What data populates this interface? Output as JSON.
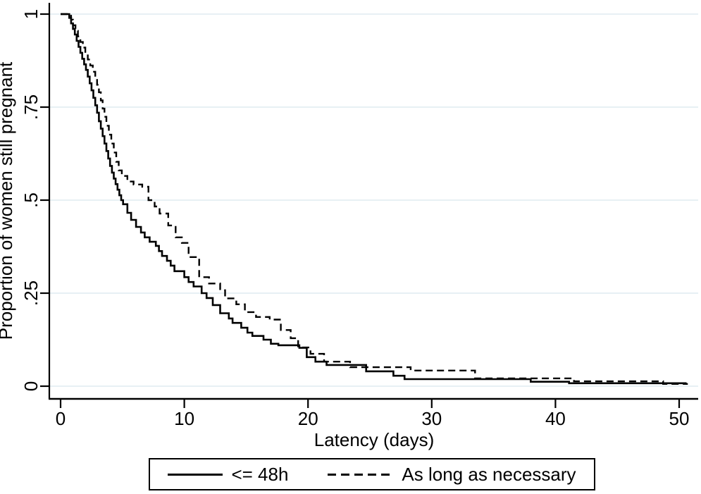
{
  "figure": {
    "background_color": "#ffffff",
    "axis_color": "#000000",
    "text_color": "#000000",
    "gridline_color": "#e7f0f4"
  },
  "chart_data": {
    "type": "line",
    "subtype": "kaplan-meier-step-survival",
    "title": "",
    "xlabel": "Latency (days)",
    "ylabel": "Proportion of women still pregnant",
    "xlim": [
      0,
      51.5
    ],
    "ylim": [
      0,
      1
    ],
    "x_ticks": [
      0,
      10,
      20,
      30,
      40,
      50
    ],
    "x_tick_labels": [
      "0",
      "10",
      "20",
      "30",
      "40",
      "50"
    ],
    "y_ticks": [
      0,
      0.25,
      0.5,
      0.75,
      1
    ],
    "y_tick_labels": [
      "0",
      ".25",
      ".5",
      ".75",
      "1"
    ],
    "grid": "horizontal-only",
    "gridline_color": "#e7f0f4",
    "line_color": "#000000",
    "legend_position": "bottom-outside-boxed",
    "series": [
      {
        "name": "<= 48h",
        "dash": "solid",
        "points": [
          [
            0,
            1.0
          ],
          [
            0.7,
            0.99
          ],
          [
            0.85,
            0.975
          ],
          [
            1.0,
            0.96
          ],
          [
            1.15,
            0.945
          ],
          [
            1.3,
            0.928
          ],
          [
            1.45,
            0.912
          ],
          [
            1.6,
            0.896
          ],
          [
            1.75,
            0.88
          ],
          [
            1.9,
            0.865
          ],
          [
            2.05,
            0.85
          ],
          [
            2.2,
            0.832
          ],
          [
            2.35,
            0.814
          ],
          [
            2.5,
            0.795
          ],
          [
            2.65,
            0.775
          ],
          [
            2.8,
            0.755
          ],
          [
            2.95,
            0.735
          ],
          [
            3.1,
            0.712
          ],
          [
            3.25,
            0.692
          ],
          [
            3.4,
            0.672
          ],
          [
            3.55,
            0.652
          ],
          [
            3.7,
            0.632
          ],
          [
            3.85,
            0.612
          ],
          [
            4.0,
            0.592
          ],
          [
            4.15,
            0.574
          ],
          [
            4.3,
            0.558
          ],
          [
            4.45,
            0.543
          ],
          [
            4.6,
            0.528
          ],
          [
            4.75,
            0.513
          ],
          [
            4.9,
            0.5
          ],
          [
            5.05,
            0.489
          ],
          [
            5.4,
            0.466
          ],
          [
            5.7,
            0.447
          ],
          [
            6.1,
            0.428
          ],
          [
            6.5,
            0.413
          ],
          [
            6.8,
            0.4
          ],
          [
            7.2,
            0.388
          ],
          [
            7.7,
            0.377
          ],
          [
            7.95,
            0.363
          ],
          [
            8.2,
            0.35
          ],
          [
            8.6,
            0.337
          ],
          [
            8.9,
            0.324
          ],
          [
            9.2,
            0.309
          ],
          [
            10.0,
            0.293
          ],
          [
            10.35,
            0.28
          ],
          [
            10.75,
            0.268
          ],
          [
            11.4,
            0.25
          ],
          [
            11.8,
            0.237
          ],
          [
            12.3,
            0.218
          ],
          [
            12.9,
            0.196
          ],
          [
            13.6,
            0.182
          ],
          [
            13.9,
            0.17
          ],
          [
            14.6,
            0.157
          ],
          [
            15.1,
            0.144
          ],
          [
            15.5,
            0.135
          ],
          [
            16.4,
            0.125
          ],
          [
            17.0,
            0.114
          ],
          [
            17.6,
            0.11
          ],
          [
            19.3,
            0.103
          ],
          [
            19.9,
            0.078
          ],
          [
            20.6,
            0.066
          ],
          [
            21.5,
            0.057
          ],
          [
            24.7,
            0.04
          ],
          [
            26.9,
            0.028
          ],
          [
            27.8,
            0.019
          ],
          [
            38.0,
            0.012
          ],
          [
            41.1,
            0.008
          ],
          [
            50.6,
            0.008
          ]
        ]
      },
      {
        "name": "As long as necessary",
        "dash": "dashed",
        "points": [
          [
            0,
            1.0
          ],
          [
            0.85,
            0.985
          ],
          [
            1.0,
            0.97
          ],
          [
            1.2,
            0.955
          ],
          [
            1.4,
            0.94
          ],
          [
            1.6,
            0.925
          ],
          [
            1.8,
            0.91
          ],
          [
            2.0,
            0.895
          ],
          [
            2.2,
            0.878
          ],
          [
            2.4,
            0.862
          ],
          [
            2.6,
            0.845
          ],
          [
            2.8,
            0.828
          ],
          [
            2.95,
            0.81
          ],
          [
            3.1,
            0.79
          ],
          [
            3.25,
            0.768
          ],
          [
            3.4,
            0.746
          ],
          [
            3.55,
            0.724
          ],
          [
            3.7,
            0.7
          ],
          [
            3.9,
            0.676
          ],
          [
            4.1,
            0.652
          ],
          [
            4.3,
            0.628
          ],
          [
            4.5,
            0.603
          ],
          [
            4.7,
            0.58
          ],
          [
            4.95,
            0.565
          ],
          [
            5.4,
            0.55
          ],
          [
            5.9,
            0.542
          ],
          [
            6.6,
            0.536
          ],
          [
            7.1,
            0.5
          ],
          [
            7.6,
            0.483
          ],
          [
            8.0,
            0.464
          ],
          [
            8.7,
            0.432
          ],
          [
            9.3,
            0.4
          ],
          [
            9.8,
            0.385
          ],
          [
            10.35,
            0.347
          ],
          [
            11.2,
            0.293
          ],
          [
            12.0,
            0.276
          ],
          [
            12.9,
            0.258
          ],
          [
            13.3,
            0.236
          ],
          [
            14.2,
            0.22
          ],
          [
            14.9,
            0.199
          ],
          [
            15.8,
            0.186
          ],
          [
            16.9,
            0.179
          ],
          [
            17.8,
            0.151
          ],
          [
            18.6,
            0.129
          ],
          [
            19.2,
            0.104
          ],
          [
            20.2,
            0.087
          ],
          [
            21.3,
            0.066
          ],
          [
            23.4,
            0.051
          ],
          [
            28.3,
            0.042
          ],
          [
            33.5,
            0.021
          ],
          [
            41.5,
            0.013
          ],
          [
            48.7,
            0.006
          ],
          [
            50.7,
            0.006
          ]
        ]
      }
    ]
  },
  "legend": {
    "items": [
      {
        "label": "<= 48h",
        "line_style": "solid"
      },
      {
        "label": "As long as necessary",
        "line_style": "dashed"
      }
    ]
  }
}
